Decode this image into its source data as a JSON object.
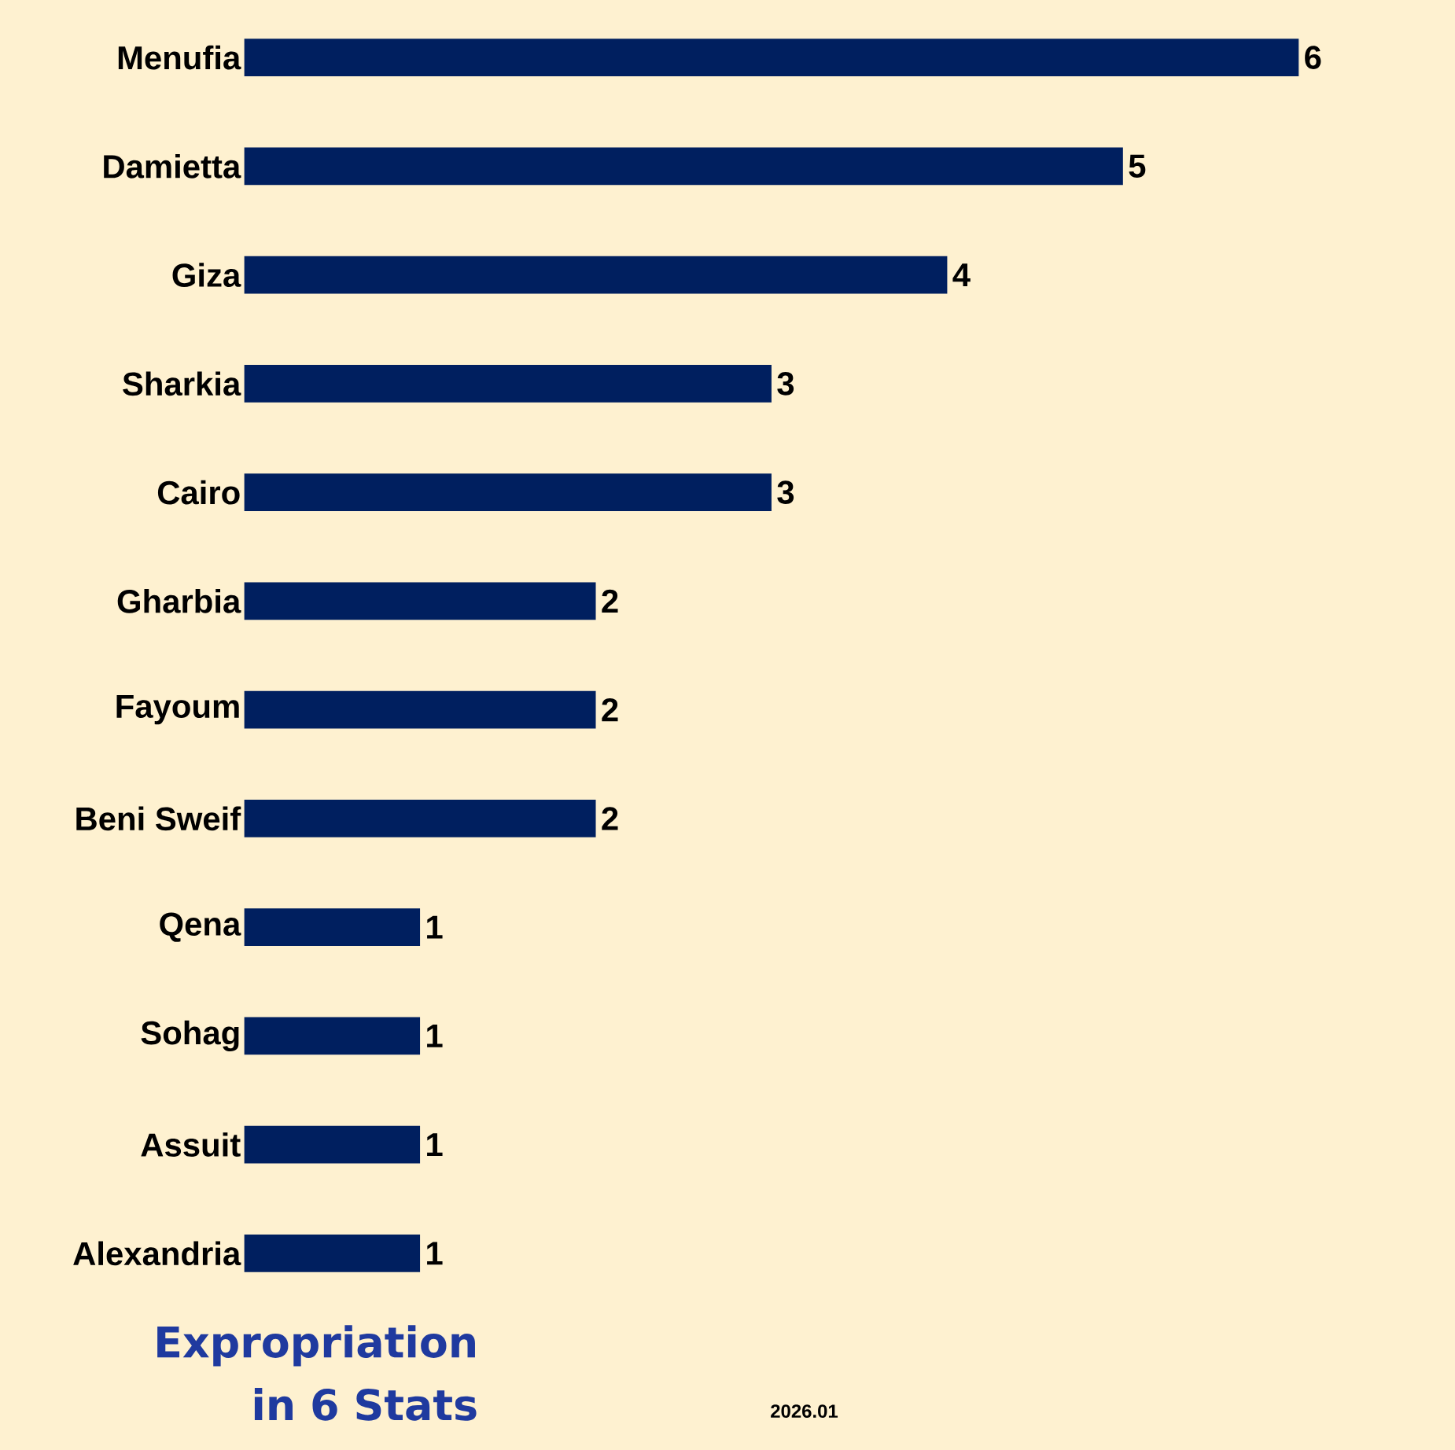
{
  "chart_data": {
    "type": "bar",
    "orientation": "horizontal",
    "title": "Expropriation in 6 Stats",
    "categories": [
      "Menufia",
      "Damietta",
      "Giza",
      "Sharkia",
      "Cairo",
      "Gharbia",
      "Fayoum",
      "Beni Sweif",
      "Qena",
      "Sohag",
      "Assuit",
      "Alexandria"
    ],
    "values": [
      6,
      5,
      4,
      3,
      3,
      2,
      2,
      2,
      1,
      1,
      1,
      1
    ],
    "color": "#001f5f",
    "data_labels": true,
    "annotations": [
      "2026.01"
    ]
  }
}
